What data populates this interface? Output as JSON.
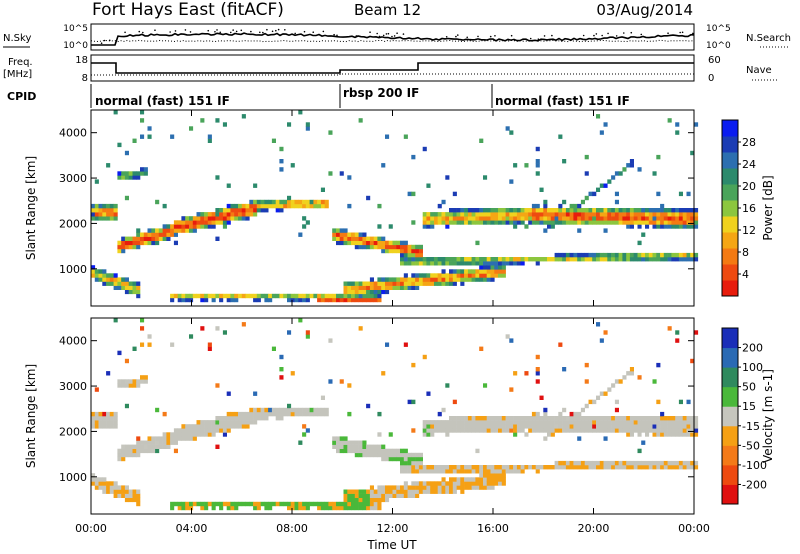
{
  "header": {
    "station": "Fort Hays East (fitACF)",
    "beam": "Beam 12",
    "date": "03/Aug/2014"
  },
  "noise_panel": {
    "left_label": "N.Sky",
    "right_label": "N.Search",
    "left_ticks": [
      "10^5",
      "10^0"
    ],
    "right_ticks": [
      "10^5",
      "10^0"
    ]
  },
  "freq_panel": {
    "left_label_line1": "Freq.",
    "left_label_line2": "[MHz]",
    "right_label": "Nave",
    "left_ticks": [
      "18",
      "8"
    ],
    "right_ticks": [
      "60",
      "0"
    ]
  },
  "cpid": {
    "label": "CPID",
    "segments": [
      {
        "text": "normal (fast) 151 IF",
        "start_hour": 0
      },
      {
        "text": "rbsp 200 IF",
        "start_hour": 10
      },
      {
        "text": "normal (fast) 151 IF",
        "start_hour": 16
      }
    ]
  },
  "chart_data": [
    {
      "type": "heatmap",
      "name": "power",
      "ylabel": "Slant Range [km]",
      "xlim": [
        0,
        24
      ],
      "ylim": [
        180,
        4500
      ],
      "yticks": [
        "1000",
        "2000",
        "3000",
        "4000"
      ],
      "colorbar": {
        "label": "Power [dB]",
        "ticks": [
          "4",
          "8",
          "12",
          "16",
          "20",
          "24",
          "28"
        ],
        "colors": [
          "#0a1cf0",
          "#1b3cb4",
          "#2c6fb0",
          "#2c8a6c",
          "#4aa45a",
          "#8cc63e",
          "#f0d21e",
          "#f5a614",
          "#f47a12",
          "#ee4a10",
          "#e81c0c"
        ]
      }
    },
    {
      "type": "heatmap",
      "name": "velocity",
      "ylabel": "Slant Range [km]",
      "xlabel": "Time UT",
      "xlim": [
        0,
        24
      ],
      "ylim": [
        180,
        4500
      ],
      "xticks": [
        "00:00",
        "04:00",
        "08:00",
        "12:00",
        "16:00",
        "20:00",
        "00:00"
      ],
      "yticks": [
        "1000",
        "2000",
        "3000",
        "4000"
      ],
      "colorbar": {
        "label": "Velocity [m s-1]",
        "ticks": [
          "200",
          "100",
          "50",
          "15",
          "-15",
          "-50",
          "-100",
          "-200"
        ],
        "colors": [
          "#1a2eb8",
          "#2a6ab4",
          "#2f8a5e",
          "#4ab83a",
          "#c6c6be",
          "#f5a014",
          "#f47a18",
          "#ee4a10",
          "#e01010"
        ]
      },
      "ground_scatter_color": "#c4c4bc"
    }
  ]
}
